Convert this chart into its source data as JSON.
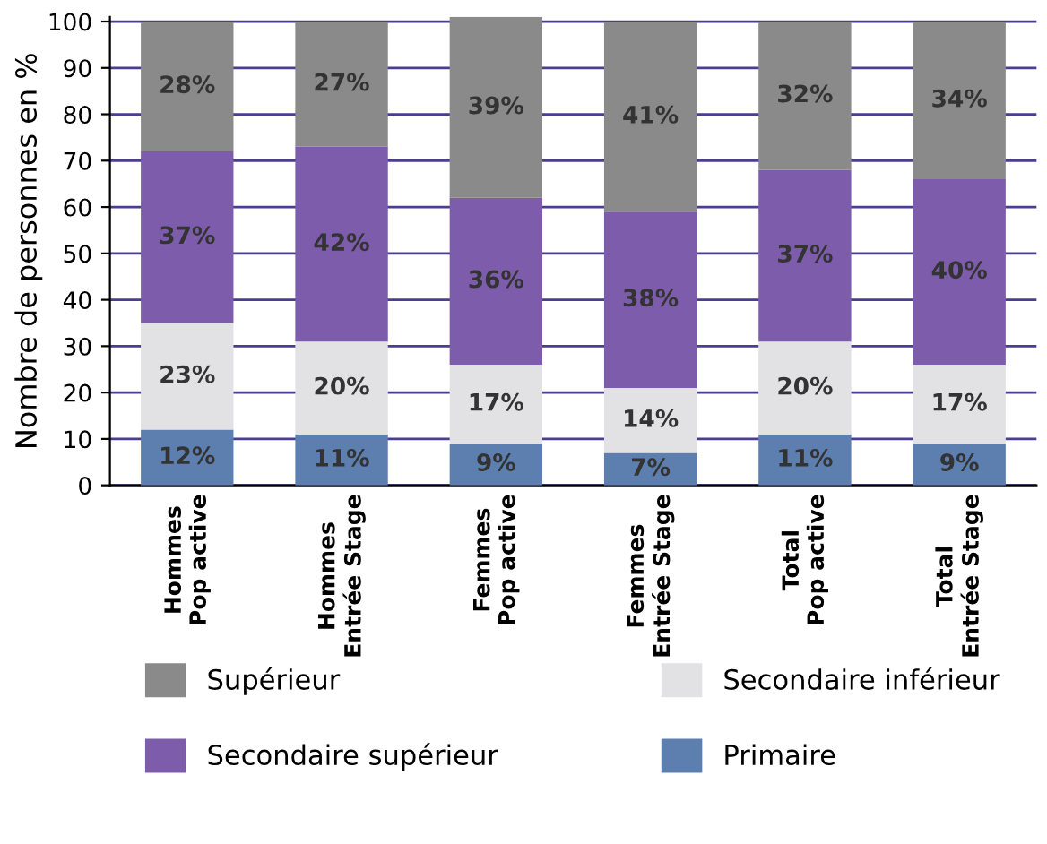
{
  "chart_data": {
    "type": "bar",
    "stacked": true,
    "ylabel": "Nombre de personnes en %",
    "categories": [
      "Hommes\nPop active",
      "Hommes\nEntrée Stage",
      "Femmes\nPop active",
      "Femmes\nEntrée Stage",
      "Total\nPop active",
      "Total\nEntrée Stage"
    ],
    "series": [
      {
        "name": "Primaire",
        "color": "#5d7fb0",
        "values": [
          12,
          11,
          9,
          7,
          11,
          9
        ],
        "value_labels": [
          "12%",
          "11%",
          "9%",
          "7%",
          "11%",
          "9%"
        ]
      },
      {
        "name": "Secondaire inférieur",
        "color": "#e2e2e4",
        "values": [
          23,
          20,
          17,
          14,
          20,
          17
        ],
        "value_labels": [
          "23%",
          "20%",
          "17%",
          "14%",
          "20%",
          "17%"
        ]
      },
      {
        "name": "Secondaire supérieur",
        "color": "#7d5dab",
        "values": [
          37,
          42,
          36,
          38,
          37,
          40
        ],
        "value_labels": [
          "37%",
          "42%",
          "36%",
          "38%",
          "37%",
          "40%"
        ]
      },
      {
        "name": "Supérieur",
        "color": "#8a8a8a",
        "values": [
          28,
          27,
          39,
          41,
          32,
          34
        ],
        "value_labels": [
          "28%",
          "27%",
          "39%",
          "41%",
          "32%",
          "34%"
        ]
      }
    ],
    "ylim": [
      0,
      101
    ],
    "yticks": [
      0,
      10,
      20,
      30,
      40,
      50,
      60,
      70,
      80,
      90,
      100
    ],
    "grid": "y",
    "legend": "bottom"
  }
}
